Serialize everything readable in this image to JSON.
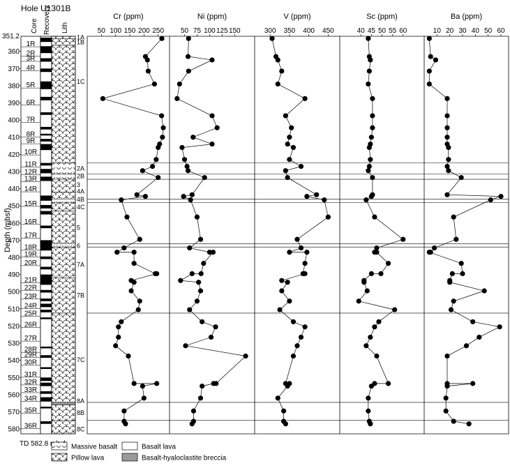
{
  "hole_title": "Hole U1301B",
  "columns": {
    "core": "Core",
    "recovery": "Recovery",
    "lith": "Lith"
  },
  "depth_axis": {
    "label": "Depth (mbsf)",
    "top": 351.2,
    "bottom": 582.8,
    "ticks": [
      360,
      370,
      380,
      390,
      400,
      410,
      420,
      430,
      440,
      450,
      460,
      470,
      480,
      490,
      500,
      510,
      520,
      530,
      540,
      550,
      560,
      570,
      580
    ],
    "top_label": "351.2"
  },
  "total_depth_label": "TD 582.8 mbsf",
  "cores": [
    {
      "name": "1R",
      "depth": 355.5
    },
    {
      "name": "2R",
      "depth": 361.0
    },
    {
      "name": "3R",
      "depth": 364.0
    },
    {
      "name": "4R",
      "depth": 369.5
    },
    {
      "name": "5R",
      "depth": 379.5
    },
    {
      "name": "6R",
      "depth": 389.5
    },
    {
      "name": "7R",
      "depth": 399.5
    },
    {
      "name": "8R",
      "depth": 408.0
    },
    {
      "name": "9R",
      "depth": 412.0
    },
    {
      "name": "10R",
      "depth": 418.5
    },
    {
      "name": "11R",
      "depth": 425.5
    },
    {
      "name": "12R",
      "depth": 430.0
    },
    {
      "name": "13R",
      "depth": 434.0
    },
    {
      "name": "14R",
      "depth": 440.0
    },
    {
      "name": "15R",
      "depth": 448.5
    },
    {
      "name": "16R",
      "depth": 459.0
    },
    {
      "name": "17R",
      "depth": 467.0
    },
    {
      "name": "18R",
      "depth": 474.0
    },
    {
      "name": "19R",
      "depth": 478.0
    },
    {
      "name": "20R",
      "depth": 483.0
    },
    {
      "name": "21R",
      "depth": 493.0
    },
    {
      "name": "22R",
      "depth": 497.5
    },
    {
      "name": "23R",
      "depth": 502.5
    },
    {
      "name": "24R",
      "depth": 508.0
    },
    {
      "name": "25R",
      "depth": 512.5
    },
    {
      "name": "26R",
      "depth": 519.0
    },
    {
      "name": "27R",
      "depth": 527.0
    },
    {
      "name": "28R",
      "depth": 533.5
    },
    {
      "name": "29R",
      "depth": 536.5
    },
    {
      "name": "30R",
      "depth": 541.0
    },
    {
      "name": "31R",
      "depth": 548.0
    },
    {
      "name": "32R",
      "depth": 552.5
    },
    {
      "name": "33R",
      "depth": 557.0
    },
    {
      "name": "34R",
      "depth": 562.0
    },
    {
      "name": "35R",
      "depth": 569.0
    },
    {
      "name": "36R",
      "depth": 578.0
    }
  ],
  "recovery_blocks": [
    [
      352.0,
      354.5
    ],
    [
      357.0,
      361.0
    ],
    [
      364.0,
      366.0
    ],
    [
      370.0,
      372.0
    ],
    [
      377.5,
      382.0
    ],
    [
      386.5,
      388.5
    ],
    [
      395.5,
      397.0
    ],
    [
      404.0,
      405.5
    ],
    [
      408.0,
      409.0
    ],
    [
      411.0,
      412.5
    ],
    [
      414.0,
      417.5
    ],
    [
      425.0,
      426.5
    ],
    [
      428.5,
      431.0
    ],
    [
      433.0,
      435.5
    ],
    [
      444.0,
      447.0
    ],
    [
      449.5,
      451.5
    ],
    [
      453.0,
      455.0
    ],
    [
      461.5,
      463.0
    ],
    [
      470.0,
      476.0
    ],
    [
      479.5,
      481.0
    ],
    [
      485.5,
      487.0
    ],
    [
      490.0,
      496.0
    ],
    [
      499.0,
      500.5
    ],
    [
      504.0,
      505.5
    ],
    [
      507.0,
      509.0
    ],
    [
      510.5,
      512.0
    ],
    [
      515.0,
      516.0
    ],
    [
      532.0,
      533.0
    ],
    [
      537.0,
      538.5
    ],
    [
      544.0,
      545.0
    ],
    [
      550.0,
      552.0
    ],
    [
      553.0,
      555.0
    ],
    [
      558.0,
      559.5
    ],
    [
      561.5,
      564.0
    ],
    [
      567.0,
      568.0
    ],
    [
      575.5,
      577.0
    ]
  ],
  "lith_units": [
    {
      "label": "1A",
      "top": 351.2,
      "bottom": 352.6,
      "pattern": "pillow"
    },
    {
      "label": "1B",
      "top": 352.6,
      "bottom": 356.5,
      "pattern": "pillow"
    },
    {
      "label": "1C",
      "top": 356.5,
      "bottom": 425.0,
      "pattern": "pillow"
    },
    {
      "label": "2A",
      "top": 425.0,
      "bottom": 431.5,
      "pattern": "massive"
    },
    {
      "label": "2B",
      "top": 431.5,
      "bottom": 434.5,
      "pattern": "massive"
    },
    {
      "label": "3",
      "top": 434.5,
      "bottom": 442.0,
      "pattern": "pillow"
    },
    {
      "label": "4A",
      "top": 442.0,
      "bottom": 446.0,
      "pattern": "pillow"
    },
    {
      "label": "4B",
      "top": 446.0,
      "bottom": 448.0,
      "pattern": "massive"
    },
    {
      "label": "4C",
      "top": 448.0,
      "bottom": 453.0,
      "pattern": "pillow"
    },
    {
      "label": "5",
      "top": 453.0,
      "bottom": 472.0,
      "pattern": "pillow"
    },
    {
      "label": "6",
      "top": 472.0,
      "bottom": 474.0,
      "pattern": "massive"
    },
    {
      "label": "7A",
      "top": 474.0,
      "bottom": 492.0,
      "pattern": "pillow"
    },
    {
      "label": "7B",
      "top": 492.0,
      "bottom": 512.5,
      "pattern": "pillow"
    },
    {
      "label": "7C",
      "top": 512.5,
      "bottom": 564.5,
      "pattern": "pillow"
    },
    {
      "label": "8A",
      "top": 564.5,
      "bottom": 566.0,
      "pattern": "breccia"
    },
    {
      "label": "8B",
      "top": 566.0,
      "bottom": 575.0,
      "pattern": "pillow"
    },
    {
      "label": "8C",
      "top": 575.0,
      "bottom": 582.8,
      "pattern": "pillow"
    }
  ],
  "unit_labels": [
    {
      "label": "1A",
      "depth": 351.6
    },
    {
      "label": "1B",
      "depth": 354.5
    },
    {
      "label": "1C",
      "depth": 377.5
    },
    {
      "label": "2A",
      "depth": 428.0
    },
    {
      "label": "2B",
      "depth": 432.5
    },
    {
      "label": "3",
      "depth": 437.5
    },
    {
      "label": "4A",
      "depth": 441.5
    },
    {
      "label": "4B",
      "depth": 446.0
    },
    {
      "label": "4C",
      "depth": 450.5
    },
    {
      "label": "5",
      "depth": 462.5
    },
    {
      "label": "6",
      "depth": 473.0
    },
    {
      "label": "7A",
      "depth": 484.0
    },
    {
      "label": "7B",
      "depth": 502.0
    },
    {
      "label": "7C",
      "depth": 539.5
    },
    {
      "label": "8A",
      "depth": 563.5
    },
    {
      "label": "8B",
      "depth": 570.5
    },
    {
      "label": "8C",
      "depth": 580.0
    }
  ],
  "unit_boundaries": [
    425.0,
    431.5,
    434.5,
    446.0,
    448.0,
    472.0,
    474.0,
    512.5,
    564.5,
    575.0
  ],
  "legend": [
    {
      "label": "Massive basalt",
      "pattern": "massive"
    },
    {
      "label": "Pillow lava",
      "pattern": "pillow"
    },
    {
      "label": "Basalt lava",
      "pattern": "plain"
    },
    {
      "label": "Basalt-hyaloclastite breccia",
      "pattern": "breccia"
    }
  ],
  "colors": {
    "breccia_fill": "#9a9a9a",
    "recovery_fill": "#000000",
    "mark": "#000000"
  },
  "chart_data": [
    {
      "type": "line",
      "title": "Cr (ppm)",
      "ylabel": "Depth (mbsf)",
      "ylim": [
        351.2,
        582.8
      ],
      "xlim": [
        0,
        290
      ],
      "ticks": [
        50,
        100,
        150,
        200,
        250
      ],
      "x": [
        263,
        205,
        212,
        215,
        237,
        55,
        262,
        268,
        265,
        255,
        250,
        243,
        230,
        195,
        250,
        175,
        205,
        120,
        140,
        185,
        130,
        105,
        165,
        165,
        240,
        245,
        155,
        165,
        155,
        185,
        180,
        120,
        110,
        110,
        100,
        145,
        165,
        245,
        195,
        200,
        130,
        130,
        135
      ],
      "y": [
        352.5,
        363,
        365,
        371.5,
        379,
        387.5,
        397.5,
        404.5,
        410,
        414,
        416,
        423,
        427,
        429.5,
        433.5,
        443.5,
        444.5,
        446.5,
        456.5,
        469.5,
        474.5,
        477,
        477,
        483.5,
        489.5,
        489.5,
        493.5,
        494.5,
        499.5,
        505.5,
        510.5,
        517.5,
        520.5,
        526.5,
        531.5,
        537.5,
        553.5,
        553.5,
        555,
        562,
        569.5,
        575.5,
        577
      ]
    },
    {
      "type": "line",
      "title": "Ni (ppm)",
      "ylabel": "Depth (mbsf)",
      "ylim": [
        351.2,
        582.8
      ],
      "xlim": [
        20,
        190
      ],
      "ticks": [
        50,
        75,
        100,
        125,
        150
      ],
      "x": [
        58,
        57,
        105,
        58,
        40,
        35,
        105,
        115,
        67,
        105,
        45,
        50,
        55,
        57,
        90,
        65,
        48,
        62,
        75,
        82,
        60,
        100,
        107,
        88,
        83,
        65,
        42,
        78,
        82,
        75,
        60,
        85,
        112,
        103,
        52,
        172,
        113,
        108,
        85,
        82,
        68,
        68,
        65
      ],
      "y": [
        352.5,
        363,
        365,
        371.5,
        379,
        387.5,
        397.5,
        404.5,
        410,
        414,
        416,
        423,
        427,
        429.5,
        433.5,
        443.5,
        444.5,
        446.5,
        456.5,
        469.5,
        474.5,
        477,
        477,
        483.5,
        489.5,
        489.5,
        493.5,
        494.5,
        499.5,
        505.5,
        510.5,
        517.5,
        520.5,
        526.5,
        531.5,
        537.5,
        553.5,
        553.5,
        555,
        562,
        569.5,
        575.5,
        577
      ]
    },
    {
      "type": "line",
      "title": "V (ppm)",
      "ylabel": "Depth (mbsf)",
      "ylim": [
        351.2,
        582.8
      ],
      "xlim": [
        260,
        480
      ],
      "ticks": [
        300,
        350,
        400,
        450
      ],
      "x": [
        305,
        315,
        320,
        330,
        320,
        390,
        340,
        355,
        350,
        345,
        360,
        350,
        380,
        340,
        345,
        420,
        395,
        440,
        450,
        370,
        380,
        350,
        395,
        390,
        385,
        390,
        330,
        345,
        330,
        350,
        325,
        360,
        390,
        380,
        370,
        360,
        340,
        350,
        345,
        320,
        335,
        335,
        340
      ],
      "y": [
        352.5,
        363,
        365,
        371.5,
        379,
        387.5,
        397.5,
        404.5,
        410,
        414,
        416,
        423,
        427,
        429.5,
        433.5,
        443.5,
        444.5,
        446.5,
        456.5,
        469.5,
        474.5,
        477,
        477,
        483.5,
        489.5,
        489.5,
        493.5,
        494.5,
        499.5,
        505.5,
        510.5,
        517.5,
        520.5,
        526.5,
        531.5,
        537.5,
        553.5,
        553.5,
        555,
        562,
        569.5,
        575.5,
        577
      ]
    },
    {
      "type": "line",
      "title": "Sc (ppm)",
      "ylabel": "Depth (mbsf)",
      "ylim": [
        351.2,
        582.8
      ],
      "xlim": [
        30,
        70
      ],
      "ticks": [
        40,
        45,
        50,
        55,
        60
      ],
      "x": [
        43.5,
        44,
        44.5,
        44,
        43.5,
        45.5,
        45.5,
        45.5,
        45,
        44.5,
        44,
        44.5,
        44,
        43.5,
        45.5,
        45.5,
        45,
        42.5,
        46.5,
        60,
        47.5,
        46.5,
        47.5,
        53,
        49.5,
        45,
        41.5,
        41.5,
        43,
        39,
        56,
        48.5,
        46.5,
        44.5,
        42.5,
        47.5,
        53,
        46.5,
        45,
        43.5,
        43.5,
        44,
        44.5
      ],
      "y": [
        352.5,
        363,
        365,
        371.5,
        379,
        387.5,
        397.5,
        404.5,
        410,
        414,
        416,
        423,
        427,
        429.5,
        433.5,
        443.5,
        444.5,
        446.5,
        456.5,
        469.5,
        474.5,
        477,
        477,
        483.5,
        489.5,
        489.5,
        493.5,
        494.5,
        499.5,
        505.5,
        510.5,
        517.5,
        520.5,
        526.5,
        531.5,
        537.5,
        553.5,
        553.5,
        555,
        562,
        569.5,
        575.5,
        577
      ]
    },
    {
      "type": "line",
      "title": "Ba (ppm)",
      "ylabel": "Depth (mbsf)",
      "ylim": [
        351.2,
        582.8
      ],
      "xlim": [
        0,
        66
      ],
      "ticks": [
        10,
        20,
        30,
        40,
        50,
        60
      ],
      "x": [
        4,
        5,
        9,
        4,
        4,
        18,
        18,
        18,
        18,
        18,
        19,
        19,
        18,
        19,
        29,
        18,
        60,
        52,
        23,
        25,
        8,
        5,
        4,
        29,
        30,
        22,
        20,
        20,
        47,
        23,
        21,
        38,
        59,
        43,
        33,
        18,
        18,
        38,
        18,
        17,
        17,
        23,
        35
      ],
      "y": [
        352.5,
        363,
        365,
        371.5,
        379,
        387.5,
        397.5,
        404.5,
        410,
        414,
        416,
        423,
        427,
        429.5,
        433.5,
        443.5,
        444.5,
        446.5,
        456.5,
        469.5,
        474.5,
        477,
        477,
        483.5,
        489.5,
        489.5,
        493.5,
        494.5,
        499.5,
        505.5,
        510.5,
        517.5,
        520.5,
        526.5,
        531.5,
        537.5,
        553.5,
        553.5,
        555,
        562,
        569.5,
        575.5,
        577
      ]
    }
  ]
}
